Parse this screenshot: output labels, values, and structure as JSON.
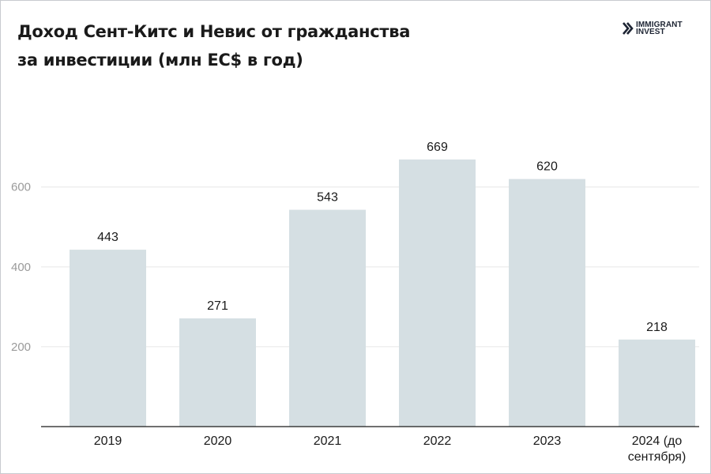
{
  "title_lines": [
    "Доход Сент-Китс и Невис от гражданства",
    "за инвестиции (млн EC$ в год)"
  ],
  "logo": {
    "line1": "IMMIGRANT",
    "line2": "INVEST",
    "icon": "double-chevron-logo-icon"
  },
  "colors": {
    "bar": "#d5dfe3",
    "grid": "#e6e6e6",
    "axis": "#1a1a1a",
    "tick_text": "#9a9a9a",
    "label_text": "#1a1a1a"
  },
  "chart_data": {
    "type": "bar",
    "title": "Доход Сент-Китс и Невис от гражданства за инвестиции (млн EC$ в год)",
    "categories": [
      "2019",
      "2020",
      "2021",
      "2022",
      "2023",
      "2024 (до сентября)"
    ],
    "category_lines": [
      [
        "2019"
      ],
      [
        "2020"
      ],
      [
        "2021"
      ],
      [
        "2022"
      ],
      [
        "2023"
      ],
      [
        "2024 (до",
        "сентября)"
      ]
    ],
    "values": [
      443,
      271,
      543,
      669,
      620,
      218
    ],
    "xlabel": "",
    "ylabel": "",
    "ylim": [
      0,
      825
    ],
    "yticks": [
      200,
      400,
      600
    ],
    "grid": true,
    "data_labels": true
  }
}
